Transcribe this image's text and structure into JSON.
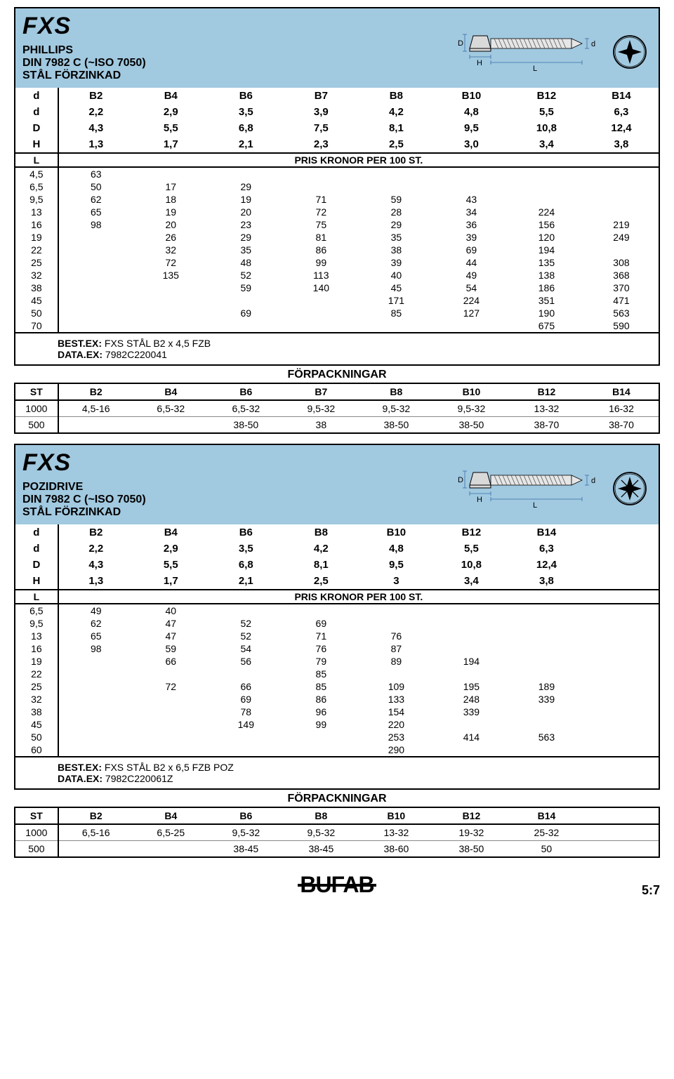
{
  "palette": {
    "header_bg": "#a1c9e0",
    "border": "#000000",
    "dim_blue": "#3b6ca8",
    "text": "#000000"
  },
  "section1": {
    "title": "FXS",
    "sub1": "PHILLIPS",
    "sub2": "DIN 7982 C (~ISO 7050)",
    "sub3": "STÅL FÖRZINKAD",
    "dim_header_rows": [
      {
        "label": "d",
        "vals": [
          "B2",
          "B4",
          "B6",
          "B7",
          "B8",
          "B10",
          "B12",
          "B14"
        ]
      },
      {
        "label": "d",
        "vals": [
          "2,2",
          "2,9",
          "3,5",
          "3,9",
          "4,2",
          "4,8",
          "5,5",
          "6,3"
        ]
      },
      {
        "label": "D",
        "vals": [
          "4,3",
          "5,5",
          "6,8",
          "7,5",
          "8,1",
          "9,5",
          "10,8",
          "12,4"
        ]
      },
      {
        "label": "H",
        "vals": [
          "1,3",
          "1,7",
          "2,1",
          "2,3",
          "2,5",
          "3,0",
          "3,4",
          "3,8"
        ]
      }
    ],
    "price_label_L": "L",
    "price_label": "PRIS KRONOR PER 100 ST.",
    "price_rows": [
      {
        "L": "4,5",
        "v": [
          "63",
          "",
          "",
          "",
          "",
          "",
          "",
          ""
        ]
      },
      {
        "L": "6,5",
        "v": [
          "50",
          "17",
          "29",
          "",
          "",
          "",
          "",
          ""
        ]
      },
      {
        "L": "9,5",
        "v": [
          "62",
          "18",
          "19",
          "71",
          "59",
          "43",
          "",
          ""
        ]
      },
      {
        "L": "13",
        "v": [
          "65",
          "19",
          "20",
          "72",
          "28",
          "34",
          "224",
          ""
        ]
      },
      {
        "L": "16",
        "v": [
          "98",
          "20",
          "23",
          "75",
          "29",
          "36",
          "156",
          "219"
        ]
      },
      {
        "L": "19",
        "v": [
          "",
          "26",
          "29",
          "81",
          "35",
          "39",
          "120",
          "249"
        ]
      },
      {
        "L": "22",
        "v": [
          "",
          "32",
          "35",
          "86",
          "38",
          "69",
          "194",
          ""
        ]
      },
      {
        "L": "25",
        "v": [
          "",
          "72",
          "48",
          "99",
          "39",
          "44",
          "135",
          "308"
        ]
      },
      {
        "L": "32",
        "v": [
          "",
          "135",
          "52",
          "113",
          "40",
          "49",
          "138",
          "368"
        ]
      },
      {
        "L": "38",
        "v": [
          "",
          "",
          "59",
          "140",
          "45",
          "54",
          "186",
          "370"
        ]
      },
      {
        "L": "45",
        "v": [
          "",
          "",
          "",
          "",
          "171",
          "224",
          "351",
          "471"
        ]
      },
      {
        "L": "50",
        "v": [
          "",
          "",
          "69",
          "",
          "85",
          "127",
          "190",
          "563"
        ]
      },
      {
        "L": "70",
        "v": [
          "",
          "",
          "",
          "",
          "",
          "",
          "675",
          "590"
        ]
      }
    ],
    "bestex_label": "BEST.EX:",
    "bestex_val": " FXS STÅL B2 x 4,5 FZB",
    "dataex_label": "DATA.EX:",
    "dataex_val": " 7982C220041",
    "pack_title": "FÖRPACKNINGAR",
    "pack_header": {
      "label": "ST",
      "vals": [
        "B2",
        "B4",
        "B6",
        "B7",
        "B8",
        "B10",
        "B12",
        "B14"
      ]
    },
    "pack_rows": [
      {
        "label": "1000",
        "vals": [
          "4,5-16",
          "6,5-32",
          "6,5-32",
          "9,5-32",
          "9,5-32",
          "9,5-32",
          "13-32",
          "16-32"
        ]
      },
      {
        "label": "500",
        "vals": [
          "",
          "",
          "38-50",
          "38",
          "38-50",
          "38-50",
          "38-70",
          "38-70"
        ]
      }
    ]
  },
  "section2": {
    "title": "FXS",
    "sub1": "POZIDRIVE",
    "sub2": "DIN 7982 C (~ISO 7050)",
    "sub3": "STÅL FÖRZINKAD",
    "dim_header_rows": [
      {
        "label": "d",
        "vals": [
          "B2",
          "B4",
          "B6",
          "B8",
          "B10",
          "B12",
          "B14"
        ]
      },
      {
        "label": "d",
        "vals": [
          "2,2",
          "2,9",
          "3,5",
          "4,2",
          "4,8",
          "5,5",
          "6,3"
        ]
      },
      {
        "label": "D",
        "vals": [
          "4,3",
          "5,5",
          "6,8",
          "8,1",
          "9,5",
          "10,8",
          "12,4"
        ]
      },
      {
        "label": "H",
        "vals": [
          "1,3",
          "1,7",
          "2,1",
          "2,5",
          "3",
          "3,4",
          "3,8"
        ]
      }
    ],
    "price_label_L": "L",
    "price_label": "PRIS KRONOR PER 100 ST.",
    "price_rows": [
      {
        "L": "6,5",
        "v": [
          "49",
          "40",
          "",
          "",
          "",
          "",
          ""
        ]
      },
      {
        "L": "9,5",
        "v": [
          "62",
          "47",
          "52",
          "69",
          "",
          "",
          ""
        ]
      },
      {
        "L": "13",
        "v": [
          "65",
          "47",
          "52",
          "71",
          "76",
          "",
          ""
        ]
      },
      {
        "L": "16",
        "v": [
          "98",
          "59",
          "54",
          "76",
          "87",
          "",
          ""
        ]
      },
      {
        "L": "19",
        "v": [
          "",
          "66",
          "56",
          "79",
          "89",
          "194",
          ""
        ]
      },
      {
        "L": "22",
        "v": [
          "",
          "",
          "",
          "85",
          "",
          "",
          ""
        ]
      },
      {
        "L": "25",
        "v": [
          "",
          "72",
          "66",
          "85",
          "109",
          "195",
          "189"
        ]
      },
      {
        "L": "32",
        "v": [
          "",
          "",
          "69",
          "86",
          "133",
          "248",
          "339"
        ]
      },
      {
        "L": "38",
        "v": [
          "",
          "",
          "78",
          "96",
          "154",
          "339",
          ""
        ]
      },
      {
        "L": "45",
        "v": [
          "",
          "",
          "149",
          "99",
          "220",
          "",
          ""
        ]
      },
      {
        "L": "50",
        "v": [
          "",
          "",
          "",
          "",
          "253",
          "414",
          "563"
        ]
      },
      {
        "L": "60",
        "v": [
          "",
          "",
          "",
          "",
          "290",
          "",
          ""
        ]
      }
    ],
    "bestex_label": "BEST.EX:",
    "bestex_val": " FXS STÅL B2 x 6,5 FZB POZ",
    "dataex_label": "DATA.EX:",
    "dataex_val": " 7982C220061Z",
    "pack_title": "FÖRPACKNINGAR",
    "pack_header": {
      "label": "ST",
      "vals": [
        "B2",
        "B4",
        "B6",
        "B8",
        "B10",
        "B12",
        "B14"
      ]
    },
    "pack_rows": [
      {
        "label": "1000",
        "vals": [
          "6,5-16",
          "6,5-25",
          "9,5-32",
          "9,5-32",
          "13-32",
          "19-32",
          "25-32"
        ]
      },
      {
        "label": "500",
        "vals": [
          "",
          "",
          "38-45",
          "38-45",
          "38-60",
          "38-50",
          "50"
        ]
      }
    ]
  },
  "logo": "BUFAB",
  "page_number": "5:7",
  "diagram": {
    "labels": {
      "D": "D",
      "H": "H",
      "L": "L",
      "d": "d"
    }
  }
}
